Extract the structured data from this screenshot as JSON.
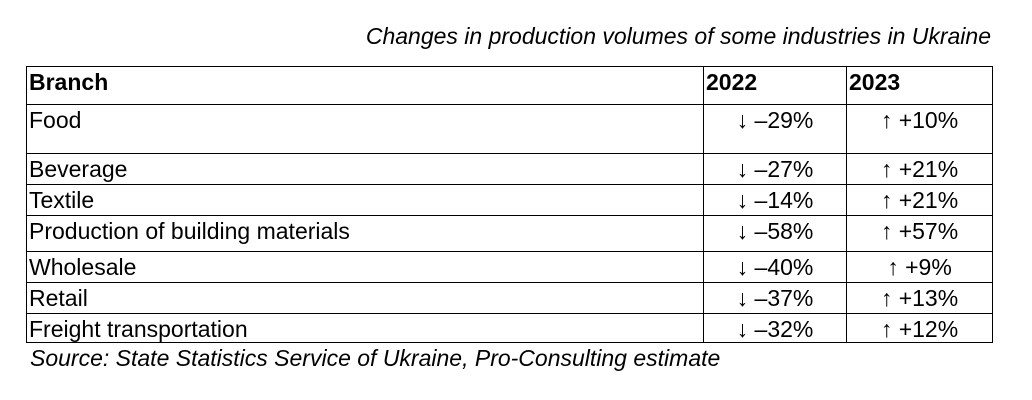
{
  "title": "Changes in production volumes of some industries in Ukraine",
  "table": {
    "header": [
      "Branch",
      "2022",
      "2023"
    ],
    "rows": [
      [
        "Food",
        "↓ –29%",
        "↑ +10%"
      ],
      [
        "Beverage",
        "↓ –27%",
        "↑ +21%"
      ],
      [
        "Textile",
        "↓ –14%",
        "↑ +21%"
      ],
      [
        "Production of building materials",
        "↓ –58%",
        "↑ +57%"
      ],
      [
        "Wholesale",
        "↓ –40%",
        "↑ +9%"
      ],
      [
        "Retail",
        "↓ –37%",
        "↑ +13%"
      ],
      [
        "Freight transportation",
        "↓ –32%",
        "↑ +12%"
      ]
    ]
  },
  "source": "Source: State Statistics Service of Ukraine, Pro-Consulting estimate"
}
